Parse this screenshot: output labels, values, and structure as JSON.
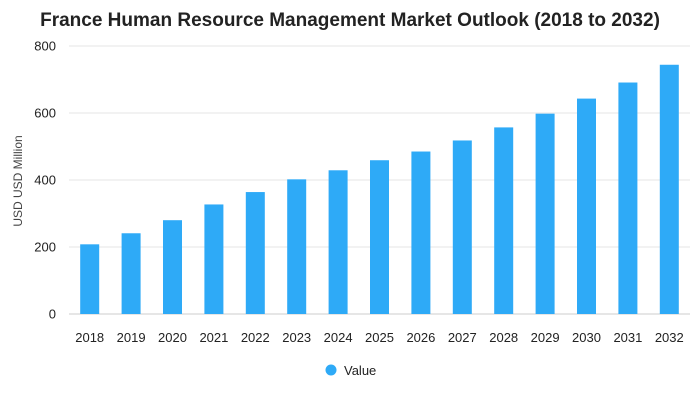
{
  "chart_data": {
    "type": "bar",
    "title": "France Human Resource Management Market Outlook (2018 to 2032)",
    "xlabel": "",
    "ylabel": "USD USD Million",
    "categories": [
      "2018",
      "2019",
      "2020",
      "2021",
      "2022",
      "2023",
      "2024",
      "2025",
      "2026",
      "2027",
      "2028",
      "2029",
      "2030",
      "2031",
      "2032"
    ],
    "series": [
      {
        "name": "Value",
        "color": "#2eaaf7",
        "values": [
          208,
          241,
          280,
          327,
          364,
          402,
          429,
          459,
          485,
          518,
          557,
          598,
          643,
          691,
          744
        ]
      }
    ],
    "ylim": [
      0,
      800
    ],
    "yticks": [
      0,
      200,
      400,
      600,
      800
    ],
    "grid": true,
    "legend_position": "bottom"
  }
}
